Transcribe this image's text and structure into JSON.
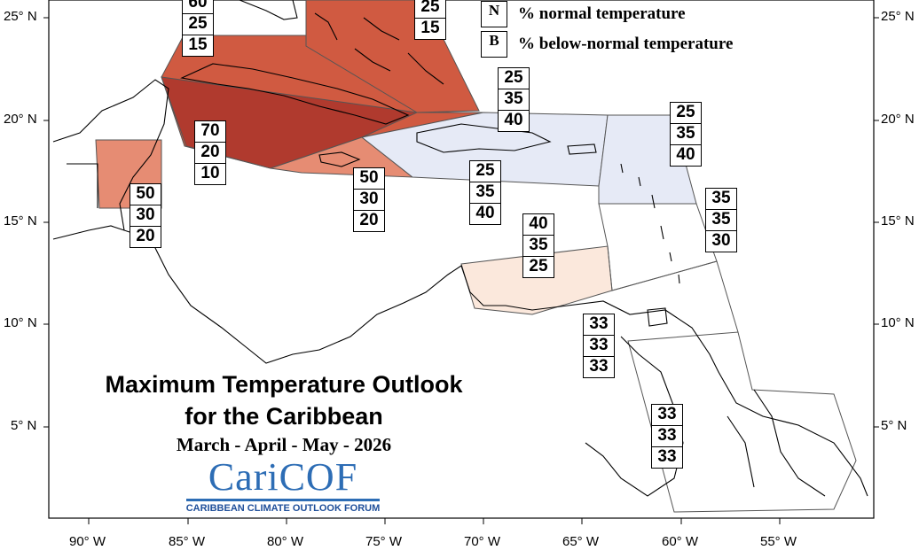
{
  "map": {
    "title_line1": "Maximum Temperature Outlook",
    "title_line2": "for the Caribbean",
    "season": "March - April - May - 2026",
    "logo": {
      "name": "CariCOF",
      "subtitle": "CARIBBEAN CLIMATE OUTLOOK FORUM"
    },
    "legend": [
      {
        "key": "N",
        "text": "% normal temperature"
      },
      {
        "key": "B",
        "text": "% below-normal temperature"
      }
    ],
    "lat_labels": [
      "25° N",
      "20° N",
      "15° N",
      "10° N",
      "5° N"
    ],
    "lon_labels": [
      "90° W",
      "85° W",
      "80° W",
      "75° W",
      "70° W",
      "65° W",
      "60° W",
      "55° W"
    ],
    "colors": {
      "dark_red": "#b03a2e",
      "red": "#d05a41",
      "salmon": "#e68c73",
      "light_peach": "#fbe8dc",
      "light_blue": "#e6eaf6",
      "logo_blue": "#2d6db5"
    },
    "regions": [
      {
        "name": "bahamas-northwest",
        "probabilities": [
          "60",
          "25",
          "15"
        ]
      },
      {
        "name": "bahamas-southeast",
        "probabilities": [
          "25",
          "15"
        ]
      },
      {
        "name": "cuba-east",
        "probabilities": [
          "70",
          "20",
          "10"
        ]
      },
      {
        "name": "belize",
        "probabilities": [
          "50",
          "30",
          "20"
        ]
      },
      {
        "name": "jamaica",
        "probabilities": [
          "50",
          "30",
          "20"
        ]
      },
      {
        "name": "turks-caicos",
        "probabilities": [
          "25",
          "35",
          "40"
        ]
      },
      {
        "name": "hispaniola",
        "probabilities": [
          "25",
          "35",
          "40"
        ]
      },
      {
        "name": "leeward-islands",
        "probabilities": [
          "25",
          "35",
          "40"
        ]
      },
      {
        "name": "windward-islands",
        "probabilities": [
          "35",
          "35",
          "30"
        ]
      },
      {
        "name": "abc-islands",
        "probabilities": [
          "40",
          "35",
          "25"
        ]
      },
      {
        "name": "trinidad-tobago",
        "probabilities": [
          "33",
          "33",
          "33"
        ]
      },
      {
        "name": "guianas",
        "probabilities": [
          "33",
          "33",
          "33"
        ]
      }
    ]
  }
}
